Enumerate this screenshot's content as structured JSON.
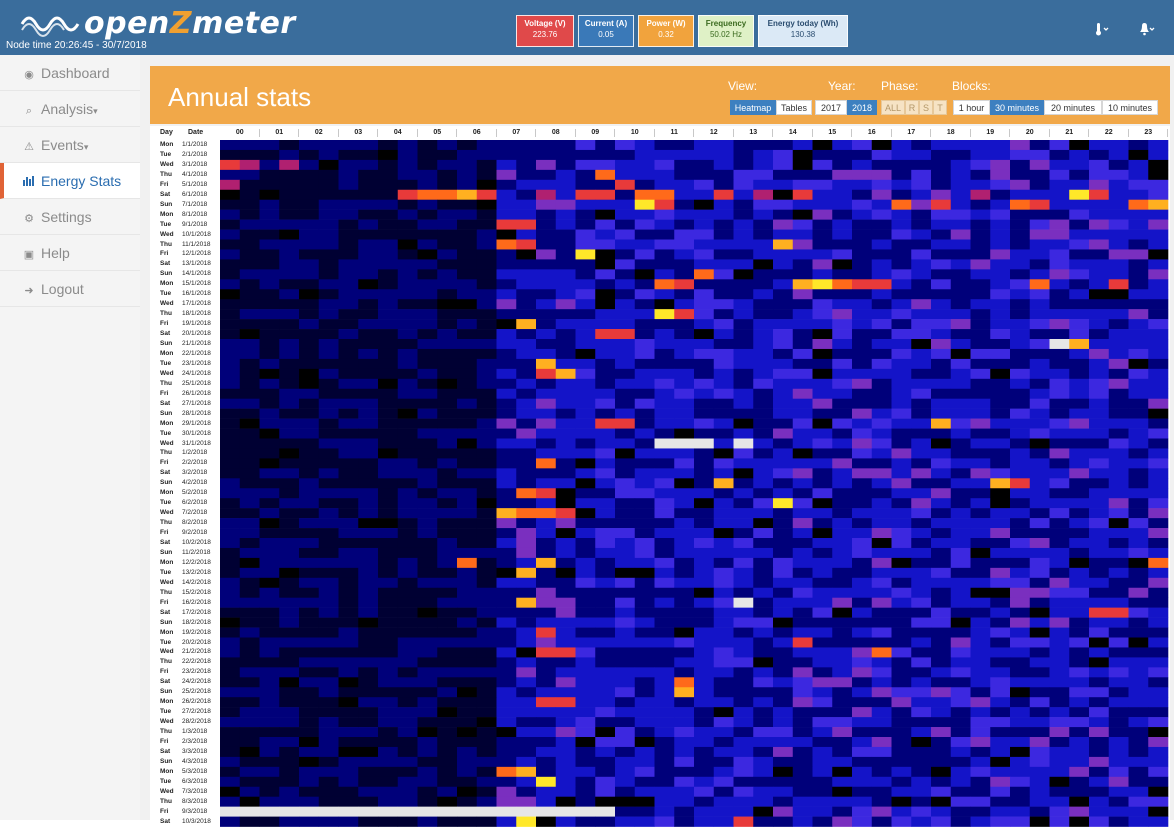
{
  "app": {
    "logo_text_a": "open",
    "logo_text_z": "Z",
    "logo_text_b": "meter",
    "node_time": "Node time 20:26:45 - 30/7/2018"
  },
  "metrics": [
    {
      "label": "Voltage (V)",
      "value": "223.76",
      "color": "#e0494a"
    },
    {
      "label": "Current (A)",
      "value": "0.05",
      "color": "#3a79b8"
    },
    {
      "label": "Power (W)",
      "value": "0.32",
      "color": "#f1a33d"
    },
    {
      "label": "Frequency",
      "value": "50.02 Hz",
      "color": "#dff1c6"
    },
    {
      "label": "Energy today (Wh)",
      "value": "130.38",
      "color": "#dbe9f6"
    }
  ],
  "topbar_icons": [
    "thermometer-icon",
    "bell-icon"
  ],
  "sidebar": {
    "items": [
      {
        "label": "Dashboard",
        "icon": "dashboard-icon"
      },
      {
        "label": "Analysis",
        "icon": "search-icon"
      },
      {
        "label": "Events",
        "icon": "warning-icon"
      },
      {
        "label": "Energy Stats",
        "icon": "bar-chart-icon",
        "active": true
      },
      {
        "label": "Settings",
        "icon": "gear-icon"
      },
      {
        "label": "Help",
        "icon": "book-icon"
      },
      {
        "label": "Logout",
        "icon": "logout-icon"
      }
    ]
  },
  "panel": {
    "title": "Annual stats",
    "view_label": "View:",
    "year_label": "Year:",
    "phase_label": "Phase:",
    "blocks_label": "Blocks:",
    "view_options": [
      "Heatmap",
      "Tables"
    ],
    "view_selected": "Heatmap",
    "year_options": [
      "2017",
      "2018"
    ],
    "year_selected": "2018",
    "phase_options": [
      "ALL",
      "R",
      "S",
      "T"
    ],
    "block_options": [
      "1 hour",
      "30 minutes",
      "20 minutes",
      "10 minutes"
    ],
    "block_selected": "30 minutes"
  },
  "chart_data": {
    "type": "heatmap",
    "xlabel": "",
    "ylabel": "",
    "col_header_labels": [
      "Day",
      "Date"
    ],
    "hours": [
      "00",
      "01",
      "02",
      "03",
      "04",
      "05",
      "06",
      "07",
      "08",
      "09",
      "10",
      "11",
      "12",
      "13",
      "14",
      "15",
      "16",
      "17",
      "18",
      "19",
      "20",
      "21",
      "22",
      "23"
    ],
    "blocks_per_hour": 2,
    "color_scale": [
      "#000000",
      "#000033",
      "#00007a",
      "#1414c8",
      "#3c28e0",
      "#7a2fbf",
      "#b02070",
      "#e83a3a",
      "#ff6a1a",
      "#ffb020",
      "#ffe829",
      "#ffffff"
    ],
    "missing_color": "#e6e6e6",
    "rows": [
      {
        "day": "Mon",
        "date": "1/1/2018"
      },
      {
        "day": "Tue",
        "date": "2/1/2018"
      },
      {
        "day": "Wed",
        "date": "3/1/2018"
      },
      {
        "day": "Thu",
        "date": "4/1/2018"
      },
      {
        "day": "Fri",
        "date": "5/1/2018"
      },
      {
        "day": "Sat",
        "date": "6/1/2018"
      },
      {
        "day": "Sun",
        "date": "7/1/2018"
      },
      {
        "day": "Mon",
        "date": "8/1/2018"
      },
      {
        "day": "Tue",
        "date": "9/1/2018"
      },
      {
        "day": "Wed",
        "date": "10/1/2018"
      },
      {
        "day": "Thu",
        "date": "11/1/2018"
      },
      {
        "day": "Fri",
        "date": "12/1/2018"
      },
      {
        "day": "Sat",
        "date": "13/1/2018"
      },
      {
        "day": "Sun",
        "date": "14/1/2018"
      },
      {
        "day": "Mon",
        "date": "15/1/2018"
      },
      {
        "day": "Tue",
        "date": "16/1/2018"
      },
      {
        "day": "Wed",
        "date": "17/1/2018"
      },
      {
        "day": "Thu",
        "date": "18/1/2018"
      },
      {
        "day": "Fri",
        "date": "19/1/2018"
      },
      {
        "day": "Sat",
        "date": "20/1/2018"
      },
      {
        "day": "Sun",
        "date": "21/1/2018"
      },
      {
        "day": "Mon",
        "date": "22/1/2018"
      },
      {
        "day": "Tue",
        "date": "23/1/2018"
      },
      {
        "day": "Wed",
        "date": "24/1/2018"
      },
      {
        "day": "Thu",
        "date": "25/1/2018"
      },
      {
        "day": "Fri",
        "date": "26/1/2018"
      },
      {
        "day": "Sat",
        "date": "27/1/2018"
      },
      {
        "day": "Sun",
        "date": "28/1/2018"
      },
      {
        "day": "Mon",
        "date": "29/1/2018"
      },
      {
        "day": "Tue",
        "date": "30/1/2018"
      },
      {
        "day": "Wed",
        "date": "31/1/2018"
      },
      {
        "day": "Thu",
        "date": "1/2/2018"
      },
      {
        "day": "Fri",
        "date": "2/2/2018"
      },
      {
        "day": "Sat",
        "date": "3/2/2018"
      },
      {
        "day": "Sun",
        "date": "4/2/2018"
      },
      {
        "day": "Mon",
        "date": "5/2/2018"
      },
      {
        "day": "Tue",
        "date": "6/2/2018"
      },
      {
        "day": "Wed",
        "date": "7/2/2018"
      },
      {
        "day": "Thu",
        "date": "8/2/2018"
      },
      {
        "day": "Fri",
        "date": "9/2/2018"
      },
      {
        "day": "Sat",
        "date": "10/2/2018"
      },
      {
        "day": "Sun",
        "date": "11/2/2018"
      },
      {
        "day": "Mon",
        "date": "12/2/2018"
      },
      {
        "day": "Tue",
        "date": "13/2/2018"
      },
      {
        "day": "Wed",
        "date": "14/2/2018"
      },
      {
        "day": "Thu",
        "date": "15/2/2018"
      },
      {
        "day": "Fri",
        "date": "16/2/2018"
      },
      {
        "day": "Sat",
        "date": "17/2/2018"
      },
      {
        "day": "Sun",
        "date": "18/2/2018"
      },
      {
        "day": "Mon",
        "date": "19/2/2018"
      },
      {
        "day": "Tue",
        "date": "20/2/2018"
      },
      {
        "day": "Wed",
        "date": "21/2/2018"
      },
      {
        "day": "Thu",
        "date": "22/2/2018"
      },
      {
        "day": "Fri",
        "date": "23/2/2018"
      },
      {
        "day": "Sat",
        "date": "24/2/2018"
      },
      {
        "day": "Sun",
        "date": "25/2/2018"
      },
      {
        "day": "Mon",
        "date": "26/2/2018"
      },
      {
        "day": "Tue",
        "date": "27/2/2018"
      },
      {
        "day": "Wed",
        "date": "28/2/2018"
      },
      {
        "day": "Thu",
        "date": "1/3/2018"
      },
      {
        "day": "Fri",
        "date": "2/3/2018"
      },
      {
        "day": "Sat",
        "date": "3/3/2018"
      },
      {
        "day": "Sun",
        "date": "4/3/2018"
      },
      {
        "day": "Mon",
        "date": "5/3/2018"
      },
      {
        "day": "Tue",
        "date": "6/3/2018"
      },
      {
        "day": "Wed",
        "date": "7/3/2018"
      },
      {
        "day": "Thu",
        "date": "8/3/2018"
      },
      {
        "day": "Fri",
        "date": "9/3/2018"
      },
      {
        "day": "Sat",
        "date": "10/3/2018"
      }
    ],
    "highlights": [
      {
        "row": 2,
        "col": 0,
        "level": 7
      },
      {
        "row": 2,
        "col": 1,
        "level": 6
      },
      {
        "row": 2,
        "col": 3,
        "level": 6
      },
      {
        "row": 3,
        "col": 19,
        "level": 8
      },
      {
        "row": 4,
        "col": 0,
        "level": 6
      },
      {
        "row": 4,
        "col": 20,
        "level": 7
      },
      {
        "row": 5,
        "col": 9,
        "level": 7
      },
      {
        "row": 5,
        "col": 10,
        "level": 8
      },
      {
        "row": 5,
        "col": 11,
        "level": 8
      },
      {
        "row": 5,
        "col": 12,
        "level": 9
      },
      {
        "row": 5,
        "col": 13,
        "level": 7
      },
      {
        "row": 5,
        "col": 16,
        "level": 6
      },
      {
        "row": 5,
        "col": 18,
        "level": 7
      },
      {
        "row": 5,
        "col": 19,
        "level": 7
      },
      {
        "row": 5,
        "col": 21,
        "level": 8
      },
      {
        "row": 5,
        "col": 22,
        "level": 8
      },
      {
        "row": 5,
        "col": 25,
        "level": 7
      },
      {
        "row": 5,
        "col": 27,
        "level": 6
      },
      {
        "row": 5,
        "col": 29,
        "level": 7
      },
      {
        "row": 5,
        "col": 38,
        "level": 6
      },
      {
        "row": 5,
        "col": 43,
        "level": 10
      },
      {
        "row": 5,
        "col": 44,
        "level": 7
      },
      {
        "row": 6,
        "col": 21,
        "level": 10
      },
      {
        "row": 6,
        "col": 22,
        "level": 7
      },
      {
        "row": 6,
        "col": 34,
        "level": 8
      },
      {
        "row": 6,
        "col": 36,
        "level": 7
      },
      {
        "row": 6,
        "col": 40,
        "level": 8
      },
      {
        "row": 6,
        "col": 41,
        "level": 7
      },
      {
        "row": 6,
        "col": 46,
        "level": 8
      },
      {
        "row": 6,
        "col": 47,
        "level": 9
      },
      {
        "row": 8,
        "col": 14,
        "level": 7
      },
      {
        "row": 8,
        "col": 15,
        "level": 7
      },
      {
        "row": 10,
        "col": 14,
        "level": 8
      },
      {
        "row": 10,
        "col": 15,
        "level": 7
      },
      {
        "row": 10,
        "col": 28,
        "level": 9
      },
      {
        "row": 11,
        "col": 18,
        "level": 10
      },
      {
        "row": 13,
        "col": 24,
        "level": 8
      },
      {
        "row": 14,
        "col": 22,
        "level": 8
      },
      {
        "row": 14,
        "col": 23,
        "level": 7
      },
      {
        "row": 14,
        "col": 29,
        "level": 9
      },
      {
        "row": 14,
        "col": 30,
        "level": 10
      },
      {
        "row": 14,
        "col": 31,
        "level": 8
      },
      {
        "row": 14,
        "col": 32,
        "level": 7
      },
      {
        "row": 14,
        "col": 33,
        "level": 7
      },
      {
        "row": 14,
        "col": 41,
        "level": 8
      },
      {
        "row": 14,
        "col": 45,
        "level": 7
      },
      {
        "row": 17,
        "col": 22,
        "level": 10
      },
      {
        "row": 17,
        "col": 23,
        "level": 7
      },
      {
        "row": 18,
        "col": 15,
        "level": 9
      },
      {
        "row": 19,
        "col": 19,
        "level": 7
      },
      {
        "row": 19,
        "col": 20,
        "level": 7
      },
      {
        "row": 20,
        "col": 42,
        "level": 11
      },
      {
        "row": 20,
        "col": 43,
        "level": 9
      },
      {
        "row": 22,
        "col": 16,
        "level": 9
      },
      {
        "row": 23,
        "col": 16,
        "level": 7
      },
      {
        "row": 23,
        "col": 17,
        "level": 9
      },
      {
        "row": 28,
        "col": 19,
        "level": 7
      },
      {
        "row": 28,
        "col": 20,
        "level": 7
      },
      {
        "row": 28,
        "col": 36,
        "level": 9
      },
      {
        "row": 30,
        "col": 22,
        "level": 11
      },
      {
        "row": 30,
        "col": 23,
        "level": 11
      },
      {
        "row": 30,
        "col": 24,
        "level": 11
      },
      {
        "row": 30,
        "col": 26,
        "level": 11
      },
      {
        "row": 32,
        "col": 16,
        "level": 8
      },
      {
        "row": 34,
        "col": 25,
        "level": 9
      },
      {
        "row": 34,
        "col": 39,
        "level": 9
      },
      {
        "row": 34,
        "col": 40,
        "level": 7
      },
      {
        "row": 35,
        "col": 15,
        "level": 8
      },
      {
        "row": 35,
        "col": 16,
        "level": 7
      },
      {
        "row": 36,
        "col": 28,
        "level": 10
      },
      {
        "row": 37,
        "col": 14,
        "level": 9
      },
      {
        "row": 37,
        "col": 15,
        "level": 8
      },
      {
        "row": 37,
        "col": 16,
        "level": 8
      },
      {
        "row": 37,
        "col": 17,
        "level": 7
      },
      {
        "row": 42,
        "col": 12,
        "level": 8
      },
      {
        "row": 42,
        "col": 16,
        "level": 9
      },
      {
        "row": 42,
        "col": 47,
        "level": 8
      },
      {
        "row": 43,
        "col": 15,
        "level": 9
      },
      {
        "row": 46,
        "col": 15,
        "level": 9
      },
      {
        "row": 46,
        "col": 26,
        "level": 11
      },
      {
        "row": 47,
        "col": 44,
        "level": 7
      },
      {
        "row": 47,
        "col": 45,
        "level": 7
      },
      {
        "row": 49,
        "col": 16,
        "level": 7
      },
      {
        "row": 50,
        "col": 29,
        "level": 7
      },
      {
        "row": 51,
        "col": 16,
        "level": 7
      },
      {
        "row": 51,
        "col": 17,
        "level": 7
      },
      {
        "row": 51,
        "col": 33,
        "level": 8
      },
      {
        "row": 54,
        "col": 23,
        "level": 8
      },
      {
        "row": 55,
        "col": 23,
        "level": 9
      },
      {
        "row": 56,
        "col": 16,
        "level": 7
      },
      {
        "row": 56,
        "col": 17,
        "level": 7
      },
      {
        "row": 63,
        "col": 14,
        "level": 8
      },
      {
        "row": 63,
        "col": 15,
        "level": 9
      },
      {
        "row": 64,
        "col": 16,
        "level": 10
      },
      {
        "row": 67,
        "col": 0,
        "level": 11
      },
      {
        "row": 67,
        "col": 3,
        "level": 11
      },
      {
        "row": 67,
        "col": 6,
        "level": 11
      },
      {
        "row": 67,
        "col": 10,
        "level": 11
      },
      {
        "row": 67,
        "col": 12,
        "level": 11
      },
      {
        "row": 67,
        "col": 16,
        "level": 11
      },
      {
        "row": 67,
        "col": 19,
        "level": 11
      },
      {
        "row": 68,
        "col": 15,
        "level": 10
      },
      {
        "row": 68,
        "col": 26,
        "level": 7
      }
    ],
    "missing_spans": [
      {
        "row": 30,
        "from": 22,
        "to": 24
      },
      {
        "row": 30,
        "from": 26,
        "to": 26
      },
      {
        "row": 46,
        "from": 26,
        "to": 26
      },
      {
        "row": 20,
        "from": 42,
        "to": 42
      },
      {
        "row": 67,
        "from": 0,
        "to": 19
      }
    ]
  }
}
